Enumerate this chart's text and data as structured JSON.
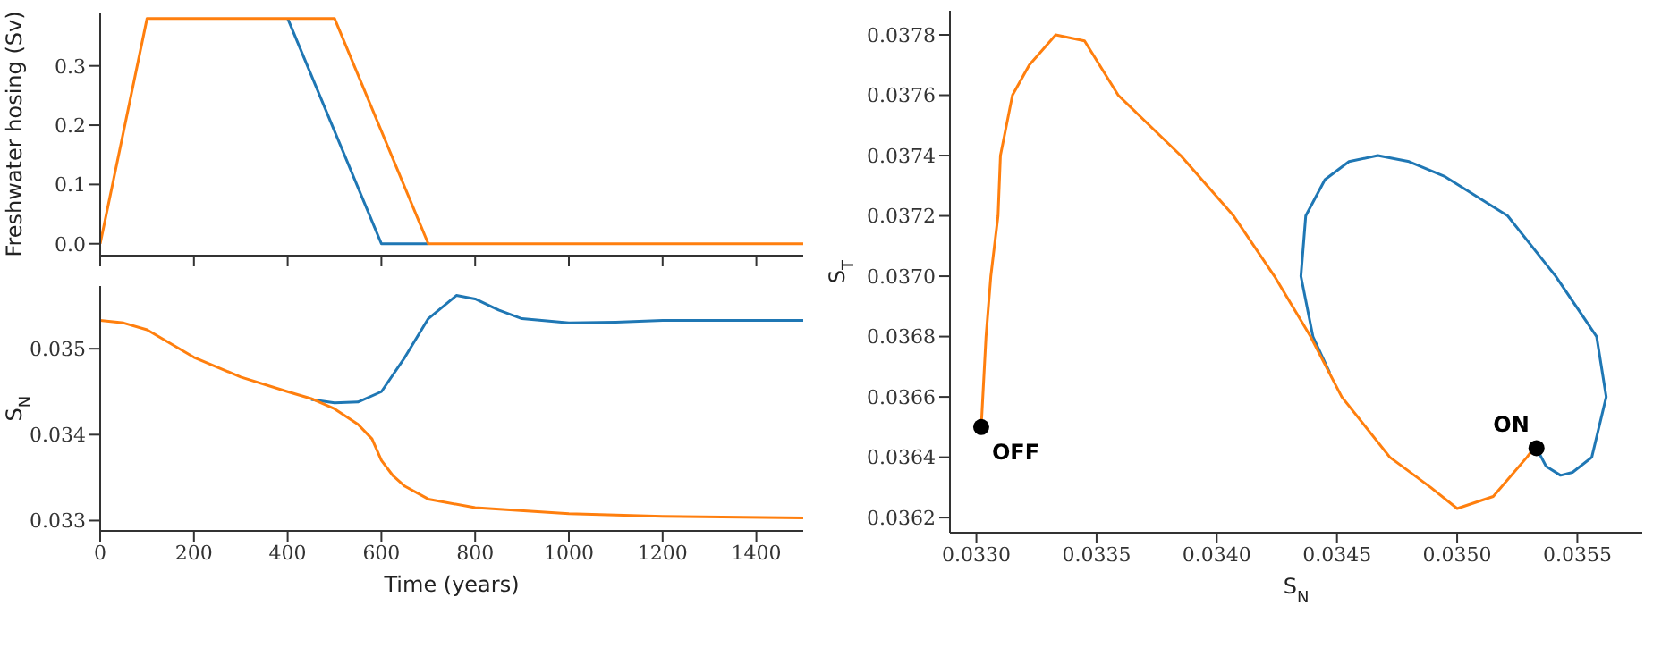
{
  "chart_data": [
    {
      "type": "line",
      "ylabel": "Freshwater hosing (Sv)",
      "xlim": [
        0,
        1500
      ],
      "xticks": [
        0,
        200,
        400,
        600,
        800,
        1000,
        1200,
        1400
      ],
      "ylim": [
        -0.02,
        0.39
      ],
      "yticks": [
        {
          "value": 0,
          "label": "0.0"
        },
        0.1,
        0.2,
        0.3
      ],
      "tick_labels": "y",
      "series": [
        {
          "color": "#1f77b4",
          "x": [
            400,
            600,
            700
          ],
          "values": [
            0.38,
            0,
            0
          ]
        },
        {
          "color": "#ff7f0e",
          "x": [
            0,
            100,
            500,
            700,
            1500
          ],
          "values": [
            0,
            0.38,
            0.38,
            0,
            0
          ]
        }
      ]
    },
    {
      "type": "line",
      "xlabel": "Time (years)",
      "ylabel": "S$_{N}$",
      "xlim": [
        0,
        1500
      ],
      "xticks": [
        0,
        200,
        400,
        600,
        800,
        1000,
        1200,
        1400
      ],
      "ylim": [
        0.03288,
        0.03573
      ],
      "yticks": [
        0.033,
        0.034,
        0.035
      ],
      "series": [
        {
          "color": "#1f77b4",
          "x": [
            450,
            500,
            550,
            600,
            650,
            700,
            760,
            800,
            850,
            900,
            1000,
            1100,
            1200,
            1500
          ],
          "values": [
            0.03441,
            0.03437,
            0.03438,
            0.0345,
            0.0349,
            0.03535,
            0.03562,
            0.03558,
            0.03545,
            0.03535,
            0.0353,
            0.03531,
            0.03533,
            0.03533
          ]
        },
        {
          "color": "#ff7f0e",
          "x": [
            0,
            50,
            100,
            200,
            300,
            400,
            450,
            500,
            550,
            580,
            600,
            625,
            650,
            700,
            800,
            1000,
            1200,
            1500
          ],
          "values": [
            0.03533,
            0.0353,
            0.03522,
            0.0349,
            0.03467,
            0.0345,
            0.03442,
            0.0343,
            0.03412,
            0.03395,
            0.0337,
            0.03352,
            0.0334,
            0.03325,
            0.03315,
            0.03308,
            0.03305,
            0.03303
          ]
        }
      ]
    },
    {
      "type": "line",
      "xlabel": "S$_{N}$",
      "ylabel": "S$_{T}$",
      "xlim": [
        0.03289,
        0.03577
      ],
      "xticks": [
        {
          "value": 0.033,
          "label": "0.0330"
        },
        0.0335,
        {
          "value": 0.034,
          "label": "0.0340"
        },
        0.0345,
        {
          "value": 0.035,
          "label": "0.0350"
        },
        0.0355
      ],
      "ylim": [
        0.03615,
        0.03788
      ],
      "yticks": [
        0.0362,
        0.0364,
        0.0366,
        0.0368,
        {
          "value": 0.037,
          "label": "0.0370"
        },
        0.0372,
        0.0374,
        0.0376,
        0.0378
      ],
      "annotations": [
        {
          "text": "OFF",
          "x": 0.03302,
          "y": 0.0365
        },
        {
          "text": "ON",
          "x": 0.03533,
          "y": 0.03643
        }
      ],
      "series": [
        {
          "color": "#1f77b4",
          "x": [
            0.03447,
            0.0344,
            0.03435,
            0.03437,
            0.03445,
            0.03455,
            0.03467,
            0.0348,
            0.03495,
            0.03521,
            0.03541,
            0.03558,
            0.03562,
            0.03556,
            0.03548,
            0.03543,
            0.03537,
            0.03533
          ],
          "values": [
            0.03668,
            0.0368,
            0.037,
            0.0372,
            0.03732,
            0.03738,
            0.0374,
            0.03738,
            0.03733,
            0.0372,
            0.037,
            0.0368,
            0.0366,
            0.0364,
            0.03635,
            0.03634,
            0.03637,
            0.03643
          ]
        },
        {
          "color": "#ff7f0e",
          "x": [
            0.03302,
            0.03304,
            0.03306,
            0.03309,
            0.0331,
            0.03315,
            0.03322,
            0.03333,
            0.03345,
            0.03359,
            0.03385,
            0.03407,
            0.03424,
            0.03439,
            0.03452,
            0.03472,
            0.03489,
            0.035,
            0.03515,
            0.03529,
            0.03532
          ],
          "values": [
            0.0365,
            0.0368,
            0.037,
            0.0372,
            0.0374,
            0.0376,
            0.0377,
            0.0378,
            0.03778,
            0.0376,
            0.0374,
            0.0372,
            0.037,
            0.0368,
            0.0366,
            0.0364,
            0.0363,
            0.03623,
            0.03627,
            0.0364,
            0.03643
          ]
        },
        {
          "type": "scatter",
          "color": "#000000",
          "marker": "circle",
          "x": [
            0.03302,
            0.03533
          ],
          "values": [
            0.0365,
            0.03643
          ]
        }
      ]
    }
  ]
}
